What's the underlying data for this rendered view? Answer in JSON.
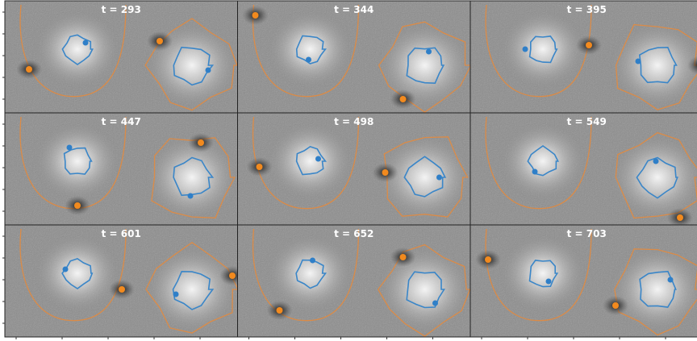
{
  "panels": [
    {
      "title": "t = 293"
    },
    {
      "title": "t = 344"
    },
    {
      "title": "t = 395"
    },
    {
      "title": "t = 447"
    },
    {
      "title": "t = 498"
    },
    {
      "title": "t = 549"
    },
    {
      "title": "t = 601"
    },
    {
      "title": "t = 652"
    },
    {
      "title": "t = 703"
    }
  ]
}
